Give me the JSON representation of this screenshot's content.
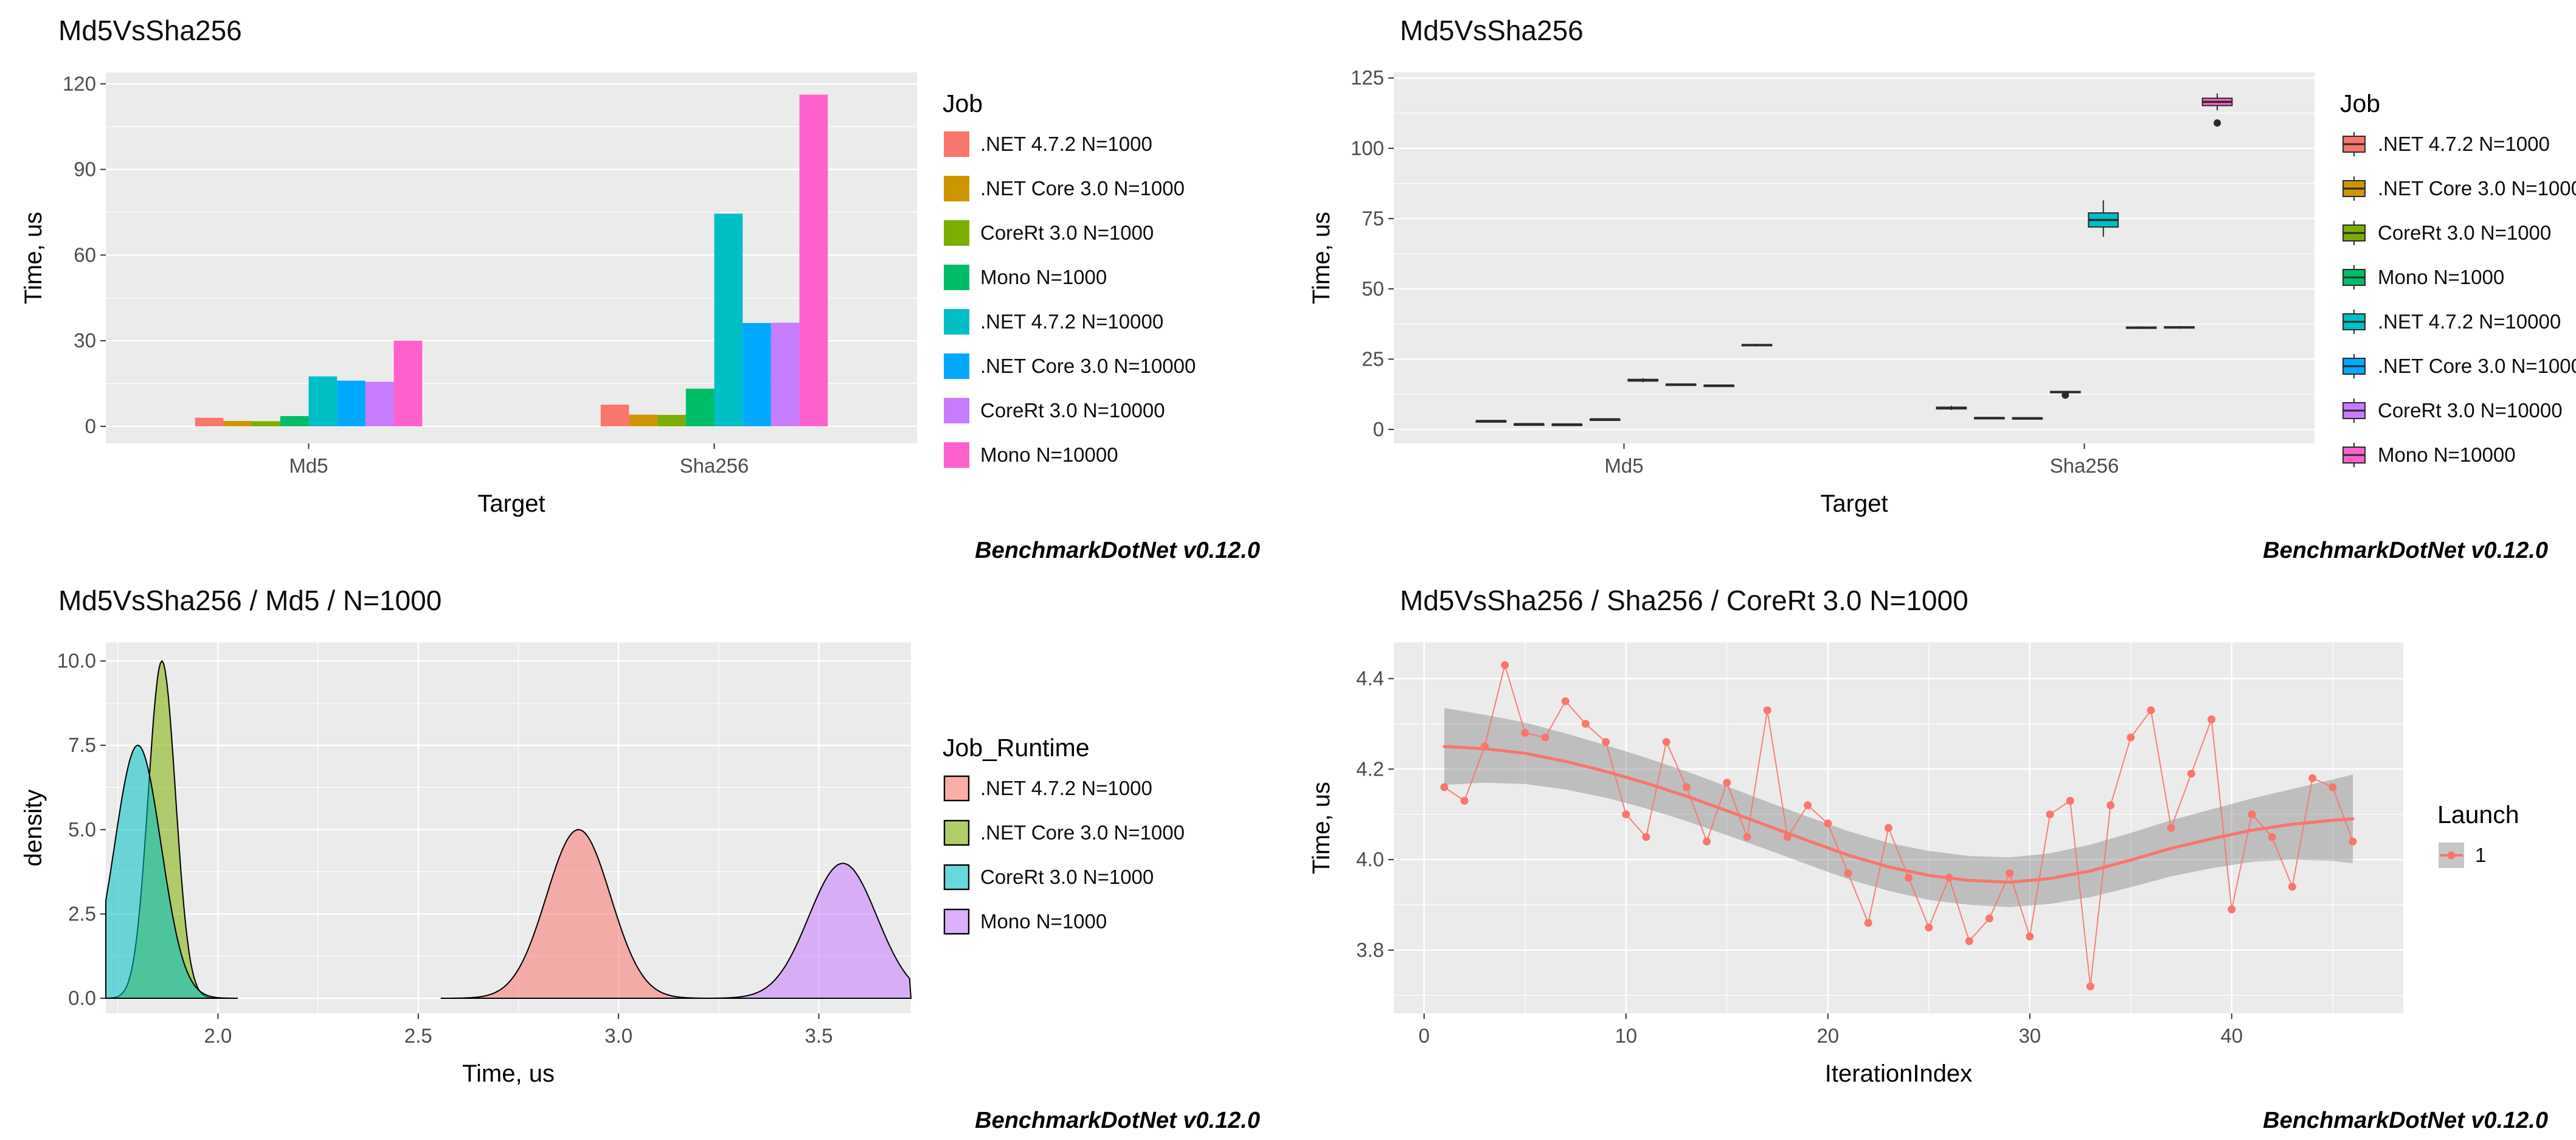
{
  "caption": "BenchmarkDotNet v0.12.0",
  "panel_bg": "#EBEBEB",
  "grid_color": "#FFFFFF",
  "tick_color": "#4D4D4D",
  "chart_data": [
    {
      "type": "bar",
      "title": "Md5VsSha256",
      "xlabel": "Target",
      "ylabel": "Time, us",
      "legend_title": "Job",
      "legend_position": "right",
      "grid": true,
      "categories": [
        "Md5",
        "Sha256"
      ],
      "yticks": [
        0,
        30,
        60,
        90,
        120
      ],
      "ytick_labels": [
        "0",
        "30",
        "60",
        "90",
        "120"
      ],
      "yminor": [
        15,
        45,
        75,
        105
      ],
      "ylim": [
        -6,
        124
      ],
      "series": [
        {
          "name": ".NET 4.7.2 N=1000",
          "color": "#F8766D",
          "values": [
            3.0,
            7.6
          ]
        },
        {
          "name": ".NET Core 3.0 N=1000",
          "color": "#CD9600",
          "values": [
            1.9,
            4.1
          ]
        },
        {
          "name": "CoreRt 3.0 N=1000",
          "color": "#7CAE00",
          "values": [
            1.8,
            4.0
          ]
        },
        {
          "name": "Mono N=1000",
          "color": "#00BE67",
          "values": [
            3.6,
            13.2
          ]
        },
        {
          "name": ".NET 4.7.2 N=10000",
          "color": "#00BFC4",
          "values": [
            17.5,
            74.5
          ]
        },
        {
          "name": ".NET Core 3.0 N=10000",
          "color": "#00A9FF",
          "values": [
            16.0,
            36.2
          ]
        },
        {
          "name": "CoreRt 3.0 N=10000",
          "color": "#C77CFF",
          "values": [
            15.6,
            36.3
          ]
        },
        {
          "name": "Mono N=10000",
          "color": "#FF61CC",
          "values": [
            30.0,
            116.2
          ]
        }
      ]
    },
    {
      "type": "box",
      "title": "Md5VsSha256",
      "xlabel": "Target",
      "ylabel": "Time, us",
      "legend_title": "Job",
      "legend_position": "right",
      "grid": true,
      "categories": [
        "Md5",
        "Sha256"
      ],
      "yticks": [
        0,
        25,
        50,
        75,
        100,
        125
      ],
      "ytick_labels": [
        "0",
        "25",
        "50",
        "75",
        "100",
        "125"
      ],
      "yminor": [
        12.5,
        37.5,
        62.5,
        87.5,
        112.5
      ],
      "ylim": [
        -5,
        127
      ],
      "series": [
        {
          "name": ".NET 4.7.2 N=1000",
          "color": "#F8766D",
          "boxes": [
            {
              "lo": 2.9,
              "q1": 2.95,
              "med": 3.0,
              "q3": 3.05,
              "hi": 3.1,
              "out": []
            },
            {
              "lo": 6.9,
              "q1": 7.3,
              "med": 7.6,
              "q3": 7.9,
              "hi": 8.4,
              "out": []
            }
          ]
        },
        {
          "name": ".NET Core 3.0 N=1000",
          "color": "#CD9600",
          "boxes": [
            {
              "lo": 1.85,
              "q1": 1.88,
              "med": 1.9,
              "q3": 1.92,
              "hi": 1.95,
              "out": []
            },
            {
              "lo": 3.9,
              "q1": 4.0,
              "med": 4.1,
              "q3": 4.2,
              "hi": 4.3,
              "out": []
            }
          ]
        },
        {
          "name": "CoreRt 3.0 N=1000",
          "color": "#7CAE00",
          "boxes": [
            {
              "lo": 1.75,
              "q1": 1.78,
              "med": 1.8,
              "q3": 1.82,
              "hi": 1.85,
              "out": []
            },
            {
              "lo": 3.8,
              "q1": 3.9,
              "med": 4.0,
              "q3": 4.1,
              "hi": 4.2,
              "out": []
            }
          ]
        },
        {
          "name": "Mono N=1000",
          "color": "#00BE67",
          "boxes": [
            {
              "lo": 3.5,
              "q1": 3.55,
              "med": 3.6,
              "q3": 3.65,
              "hi": 3.7,
              "out": []
            },
            {
              "lo": 12.9,
              "q1": 13.1,
              "med": 13.3,
              "q3": 13.5,
              "hi": 13.7,
              "out": [
                12.2
              ]
            }
          ]
        },
        {
          "name": ".NET 4.7.2 N=10000",
          "color": "#00BFC4",
          "boxes": [
            {
              "lo": 16.8,
              "q1": 17.2,
              "med": 17.5,
              "q3": 17.8,
              "hi": 18.2,
              "out": []
            },
            {
              "lo": 68.5,
              "q1": 72.0,
              "med": 74.5,
              "q3": 77.0,
              "hi": 81.5,
              "out": []
            }
          ]
        },
        {
          "name": ".NET Core 3.0 N=10000",
          "color": "#00A9FF",
          "boxes": [
            {
              "lo": 15.7,
              "q1": 15.9,
              "med": 16.0,
              "q3": 16.1,
              "hi": 16.3,
              "out": []
            },
            {
              "lo": 35.7,
              "q1": 36.0,
              "med": 36.2,
              "q3": 36.4,
              "hi": 36.7,
              "out": []
            }
          ]
        },
        {
          "name": "CoreRt 3.0 N=10000",
          "color": "#C77CFF",
          "boxes": [
            {
              "lo": 15.3,
              "q1": 15.5,
              "med": 15.6,
              "q3": 15.7,
              "hi": 15.9,
              "out": []
            },
            {
              "lo": 35.8,
              "q1": 36.1,
              "med": 36.3,
              "q3": 36.5,
              "hi": 36.8,
              "out": []
            }
          ]
        },
        {
          "name": "Mono N=10000",
          "color": "#FF61CC",
          "boxes": [
            {
              "lo": 29.5,
              "q1": 29.8,
              "med": 30.0,
              "q3": 30.2,
              "hi": 30.5,
              "out": []
            },
            {
              "lo": 113.5,
              "q1": 115.2,
              "med": 116.5,
              "q3": 117.8,
              "hi": 119.5,
              "out": [
                109.0
              ]
            }
          ]
        }
      ]
    },
    {
      "type": "density",
      "title": "Md5VsSha256 / Md5 / N=1000",
      "xlabel": "Time, us",
      "ylabel": "density",
      "legend_title": "Job_Runtime",
      "legend_position": "right-middle",
      "grid": true,
      "xlim": [
        1.72,
        3.73
      ],
      "xticks": [
        2.0,
        2.5,
        3.0,
        3.5
      ],
      "xtick_labels": [
        "2.0",
        "2.5",
        "3.0",
        "3.5"
      ],
      "xminor": [
        1.75,
        2.25,
        2.75,
        3.25
      ],
      "ylim": [
        -0.45,
        10.55
      ],
      "yticks": [
        0,
        2.5,
        5,
        7.5,
        10
      ],
      "ytick_labels": [
        "0.0",
        "2.5",
        "5.0",
        "7.5",
        "10.0"
      ],
      "yminor": [
        1.25,
        3.75,
        6.25,
        8.75
      ],
      "fill_opacity": 0.55,
      "series": [
        {
          "name": ".NET 4.7.2 N=1000",
          "color": "#F8766D",
          "mean": 2.9,
          "sd": 0.08,
          "peak": 5.0
        },
        {
          "name": ".NET Core 3.0 N=1000",
          "color": "#7CAE00",
          "mean": 1.86,
          "sd": 0.034,
          "peak": 10.0
        },
        {
          "name": "CoreRt 3.0 N=1000",
          "color": "#00BFC4",
          "mean": 1.8,
          "sd": 0.058,
          "peak": 7.5
        },
        {
          "name": "Mono N=1000",
          "color": "#C77CFF",
          "mean": 3.56,
          "sd": 0.085,
          "peak": 4.0
        }
      ]
    },
    {
      "type": "line",
      "title": "Md5VsSha256 / Sha256 / CoreRt 3.0 N=1000",
      "xlabel": "IterationIndex",
      "ylabel": "Time, us",
      "legend_title": "Launch",
      "legend_position": "right-middle",
      "grid": true,
      "xlim": [
        -1.5,
        48.5
      ],
      "xticks": [
        0,
        10,
        20,
        30,
        40
      ],
      "xtick_labels": [
        "0",
        "10",
        "20",
        "30",
        "40"
      ],
      "xminor": [
        5,
        15,
        25,
        35,
        45
      ],
      "ylim": [
        3.66,
        4.48
      ],
      "yticks": [
        3.8,
        4.0,
        4.2,
        4.4
      ],
      "ytick_labels": [
        "3.8",
        "4.0",
        "4.2",
        "4.4"
      ],
      "yminor": [
        3.7,
        3.9,
        4.1,
        4.3
      ],
      "series": [
        {
          "name": "1",
          "color": "#F8766D"
        }
      ],
      "points": {
        "x": [
          1,
          2,
          3,
          4,
          5,
          6,
          7,
          8,
          9,
          10,
          11,
          12,
          13,
          14,
          15,
          16,
          17,
          18,
          19,
          20,
          21,
          22,
          23,
          24,
          25,
          26,
          27,
          28,
          29,
          30,
          31,
          32,
          33,
          34,
          35,
          36,
          37,
          38,
          39,
          40,
          41,
          42,
          43,
          44,
          45,
          46
        ],
        "y": [
          4.16,
          4.13,
          4.25,
          4.43,
          4.28,
          4.27,
          4.35,
          4.3,
          4.26,
          4.1,
          4.05,
          4.26,
          4.16,
          4.04,
          4.17,
          4.05,
          4.33,
          4.05,
          4.12,
          4.08,
          3.97,
          3.86,
          4.07,
          3.96,
          3.85,
          3.96,
          3.82,
          3.87,
          3.97,
          3.83,
          4.1,
          4.13,
          3.72,
          4.12,
          4.27,
          4.33,
          4.07,
          4.19,
          4.31,
          3.89,
          4.1,
          4.05,
          3.94,
          4.18,
          4.16,
          4.04
        ]
      },
      "smooth": {
        "x": [
          1,
          3,
          5,
          7,
          9,
          11,
          13,
          15,
          17,
          19,
          21,
          23,
          25,
          27,
          29,
          31,
          33,
          35,
          37,
          39,
          41,
          43,
          45,
          46
        ],
        "y": [
          4.25,
          4.245,
          4.235,
          4.217,
          4.195,
          4.169,
          4.14,
          4.108,
          4.075,
          4.042,
          4.01,
          3.984,
          3.965,
          3.954,
          3.95,
          3.958,
          3.975,
          3.999,
          4.025,
          4.046,
          4.065,
          4.078,
          4.087,
          4.09
        ],
        "lo": [
          4.165,
          4.17,
          4.167,
          4.155,
          4.137,
          4.113,
          4.085,
          4.054,
          4.022,
          3.989,
          3.957,
          3.931,
          3.911,
          3.9,
          3.895,
          3.902,
          3.917,
          3.939,
          3.963,
          3.981,
          3.995,
          4.0,
          3.997,
          3.992
        ],
        "hi": [
          4.335,
          4.32,
          4.303,
          4.279,
          4.253,
          4.225,
          4.195,
          4.162,
          4.128,
          4.095,
          4.063,
          4.037,
          4.019,
          4.008,
          4.005,
          4.014,
          4.033,
          4.059,
          4.087,
          4.111,
          4.135,
          4.156,
          4.177,
          4.188
        ]
      },
      "ribbon_color": "#777777"
    }
  ]
}
